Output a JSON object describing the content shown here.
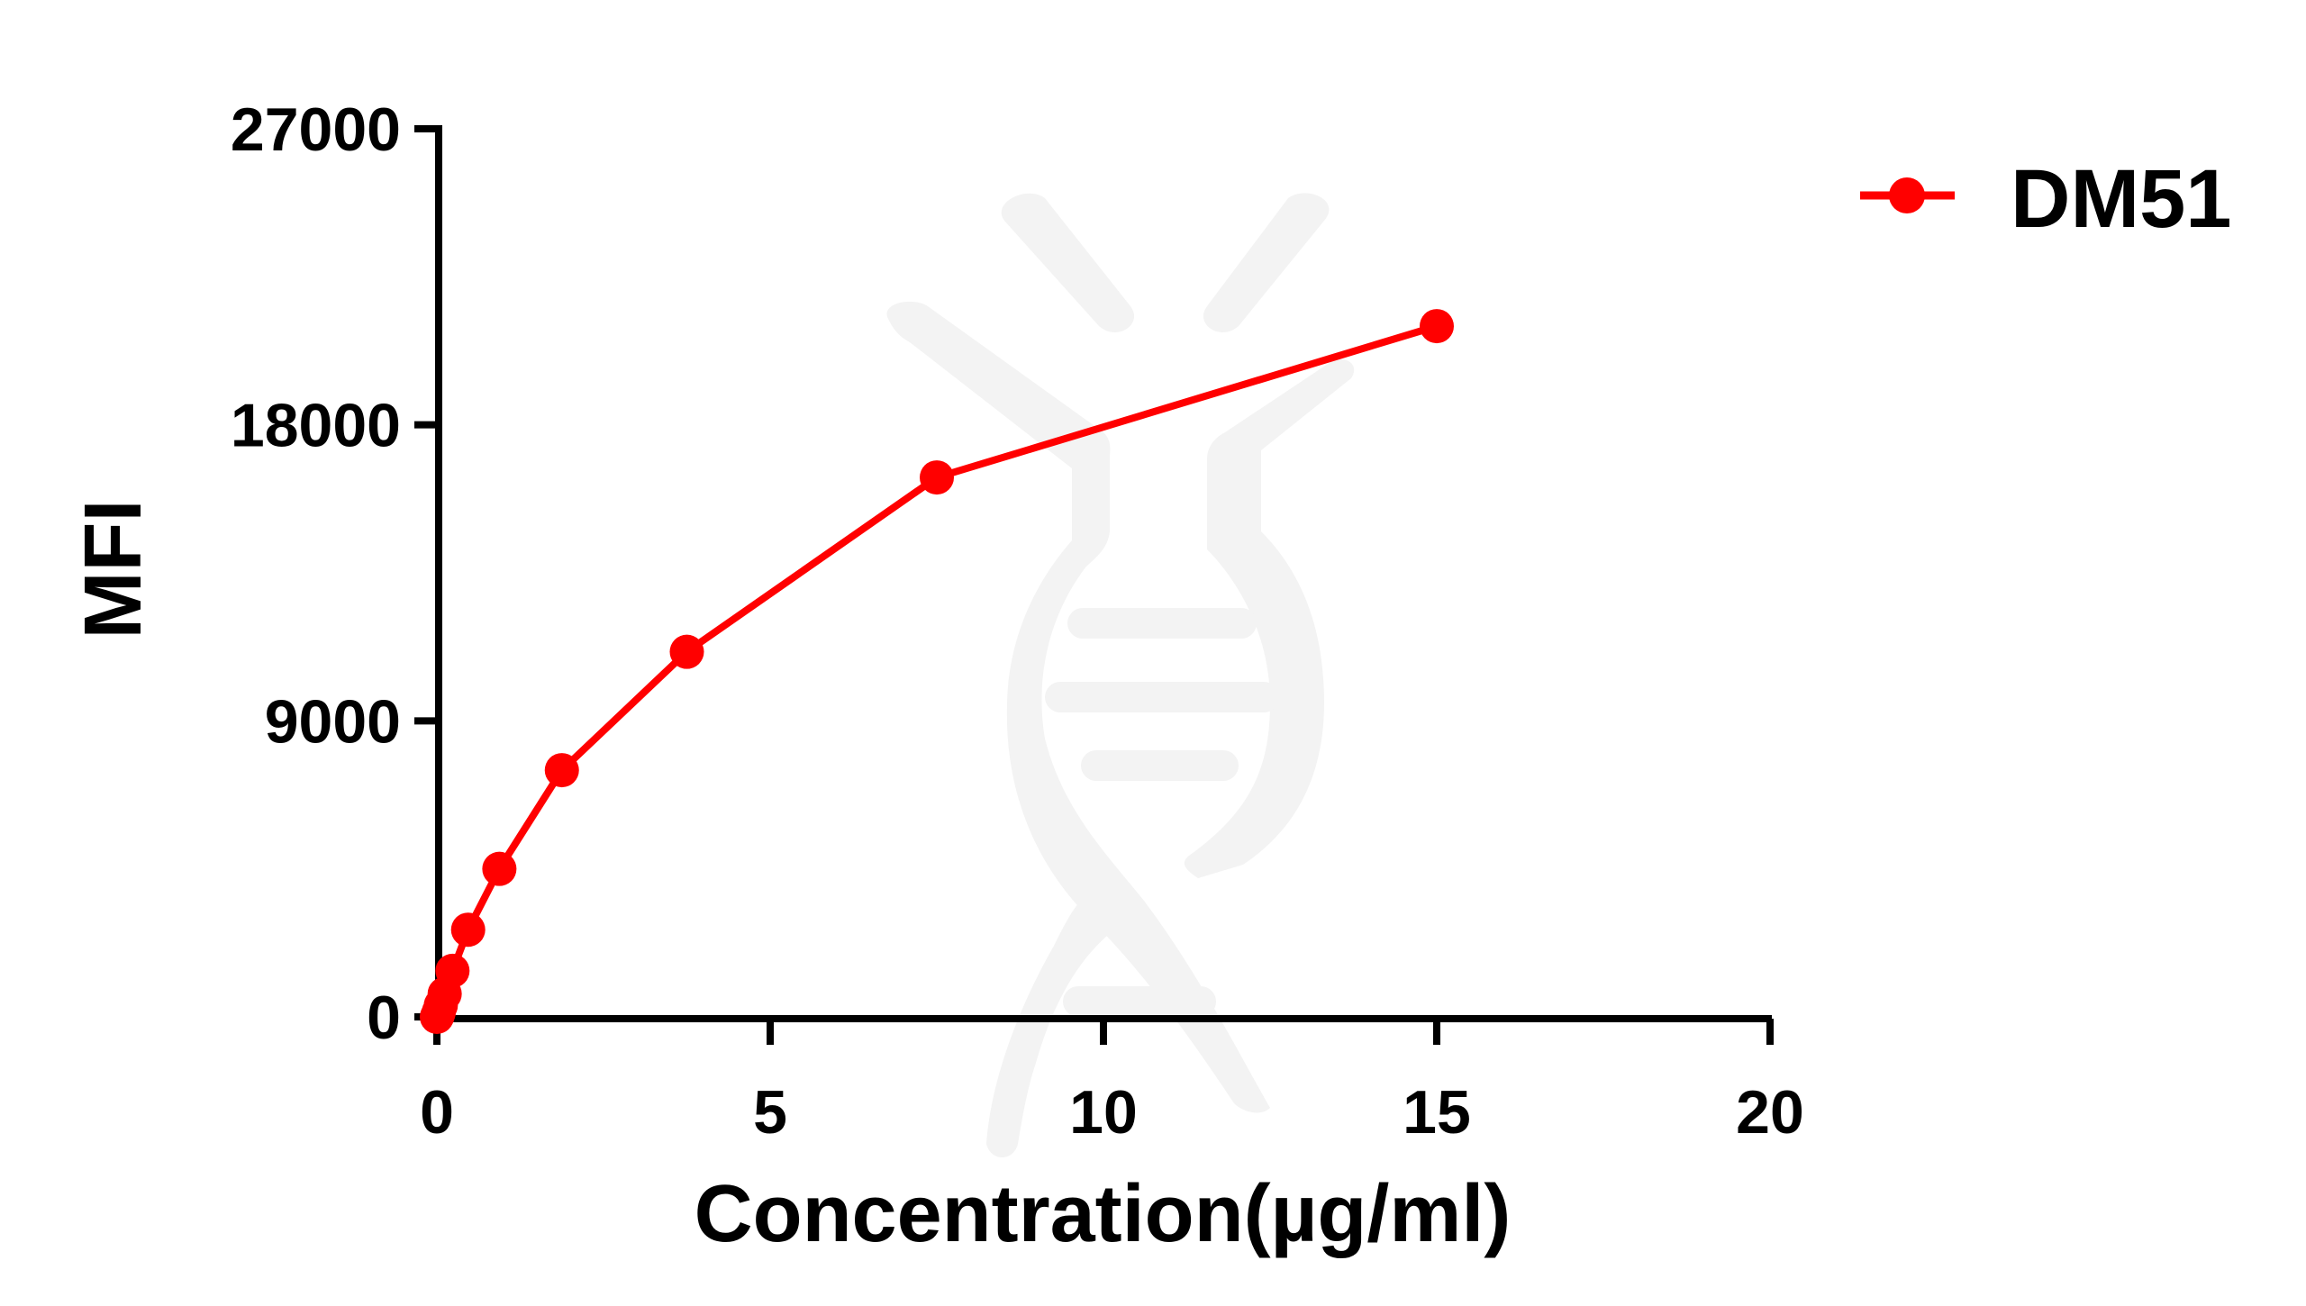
{
  "chart_data": {
    "type": "line",
    "title": "",
    "xlabel": "Concentration(µg/ml)",
    "ylabel": "MFI",
    "xlim": [
      0,
      20
    ],
    "ylim": [
      0,
      27000
    ],
    "x_ticks": [
      0,
      5,
      10,
      15,
      20
    ],
    "x_tick_labels": [
      "0",
      "5",
      "10",
      "15",
      "20"
    ],
    "y_ticks": [
      0,
      9000,
      18000,
      27000
    ],
    "y_tick_labels": [
      "0",
      "9000",
      "18000",
      "27000"
    ],
    "grid": false,
    "legend_position": "top-right outside",
    "series": [
      {
        "name": "DM51",
        "color": "#ff0000",
        "marker": "circle",
        "x": [
          0,
          0.0146,
          0.0293,
          0.0586,
          0.117,
          0.234,
          0.469,
          0.9375,
          1.875,
          3.75,
          7.5,
          15
        ],
        "values": [
          0,
          60,
          150,
          350,
          700,
          1400,
          2650,
          4500,
          7500,
          11100,
          16400,
          21000
        ]
      }
    ]
  },
  "legend": {
    "items": [
      {
        "label": "DM51",
        "color": "#ff0000"
      }
    ]
  },
  "colors": {
    "series": "#ff0000",
    "axis": "#000000",
    "watermark": "#f3f3f3",
    "background": "#ffffff"
  }
}
